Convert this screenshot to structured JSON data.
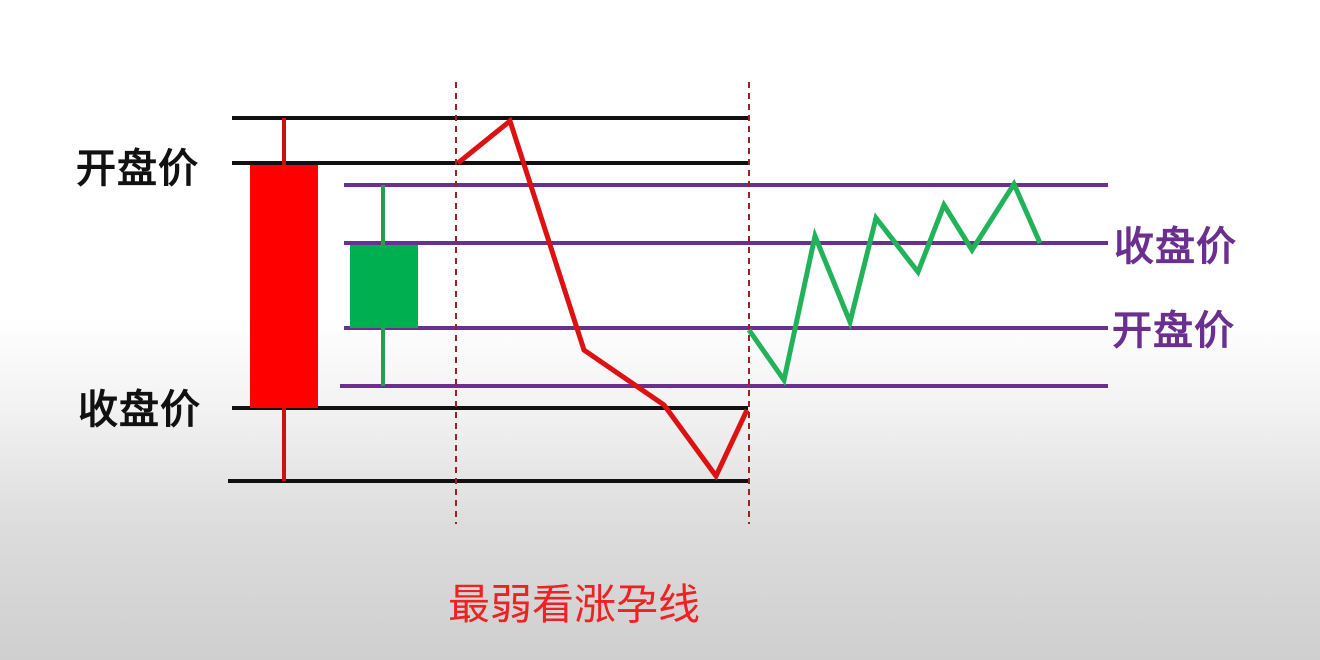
{
  "labels": {
    "left_open": "开盘价",
    "left_close": "收盘价",
    "right_close": "收盘价",
    "right_open": "开盘价"
  },
  "caption": "最弱看涨孕线",
  "colors": {
    "black_line": "#111111",
    "purple_line": "#6a2f8f",
    "bearish_candle": "#ff0000",
    "bullish_candle": "#00b050",
    "wick_red": "#cc1111",
    "price_path_red": "#dd1111",
    "price_path_green": "#22b35a",
    "divider": "#a02020",
    "caption": "#ee2222"
  }
}
